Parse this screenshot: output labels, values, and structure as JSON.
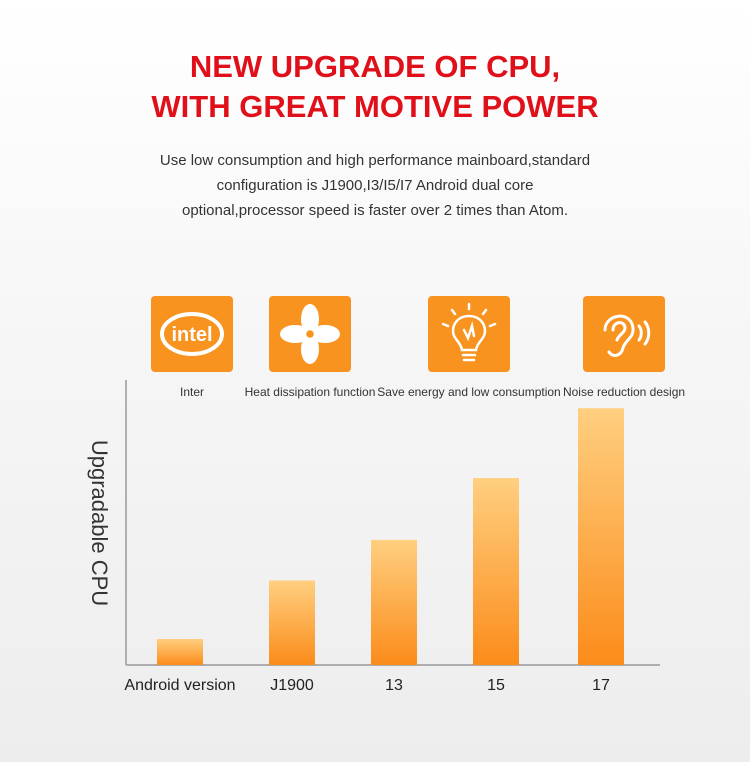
{
  "header": {
    "title_line1": "NEW UPGRADE OF CPU,",
    "title_line2": "WITH GREAT MOTIVE POWER"
  },
  "description": {
    "line1": "Use low consumption and high performance mainboard,standard",
    "line2": "configuration is J1900,I3/I5/I7 Android dual core",
    "line3": "optional,processor speed is faster over 2 times than Atom."
  },
  "features": [
    {
      "label": "Inter",
      "icon": "intel-logo-icon",
      "logo_text": "intel"
    },
    {
      "label": "Heat dissipation function",
      "icon": "fan-icon"
    },
    {
      "label": "Save energy and low consumption",
      "icon": "lightbulb-icon"
    },
    {
      "label": "Noise reduction design",
      "icon": "ear-sound-icon"
    }
  ],
  "colors": {
    "title": "#e0101a",
    "feature_bg": "#f7931e",
    "bar_top": "#ffcf80",
    "bar_bottom": "#fb8c1a"
  },
  "chart_data": {
    "type": "bar",
    "categories": [
      "Android version",
      "J1900",
      "13",
      "15",
      "17"
    ],
    "values": [
      1.6,
      5.2,
      7.7,
      11.5,
      15.8
    ],
    "ylabel": "Upgradable CPU",
    "xlabel": "",
    "ylim": [
      0,
      16
    ],
    "grid": false,
    "legend": "none"
  }
}
